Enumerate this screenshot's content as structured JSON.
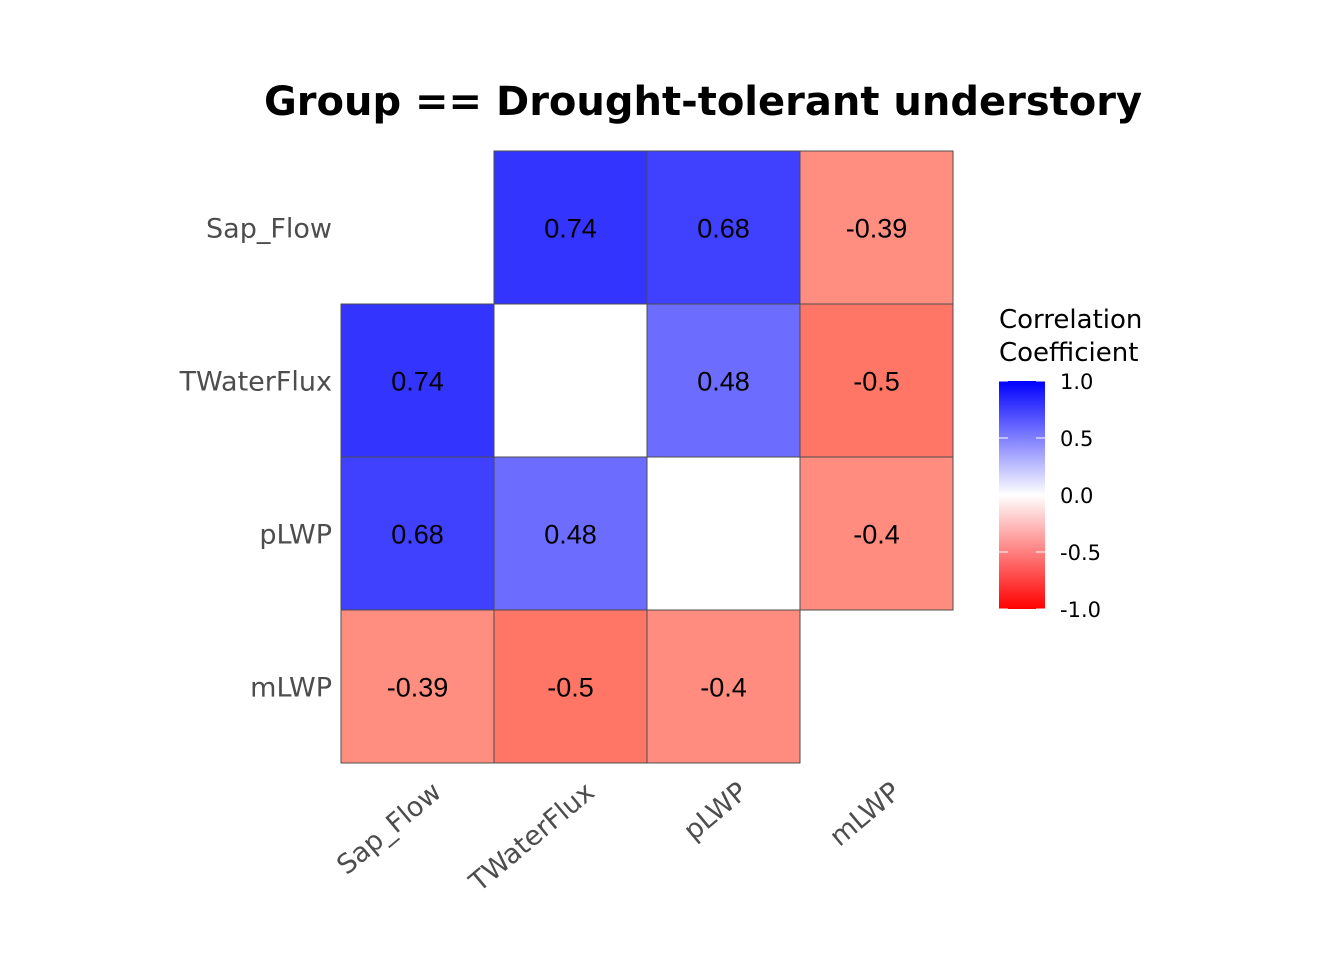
{
  "chart_data": {
    "type": "heatmap",
    "title": "Group == Drought-tolerant understory",
    "rows": [
      "Sap_Flow",
      "TWaterFlux",
      "pLWP",
      "mLWP"
    ],
    "columns": [
      "Sap_Flow",
      "TWaterFlux",
      "pLWP",
      "mLWP"
    ],
    "values": [
      [
        null,
        0.74,
        0.68,
        -0.39
      ],
      [
        0.74,
        null,
        0.48,
        -0.5
      ],
      [
        0.68,
        0.48,
        null,
        -0.4
      ],
      [
        -0.39,
        -0.5,
        -0.4,
        null
      ]
    ],
    "cell_labels": [
      [
        null,
        "0.74",
        "0.68",
        "-0.39"
      ],
      [
        "0.74",
        null,
        "0.48",
        "-0.5"
      ],
      [
        "0.68",
        "0.48",
        null,
        "-0.4"
      ],
      [
        "-0.39",
        "-0.5",
        "-0.4",
        null
      ]
    ],
    "diagonal": "blank",
    "legend": {
      "title_lines": [
        "Correlation",
        "Coefficient"
      ],
      "ticks": [
        1.0,
        0.5,
        0.0,
        -0.5,
        -1.0
      ],
      "tick_labels": [
        "1.0",
        "0.5",
        "0.0",
        "-0.5",
        "-1.0"
      ],
      "range": [
        -1,
        1
      ],
      "position": "right"
    },
    "color_scale": {
      "low": "#ff0000",
      "mid": "#ffffff",
      "high": "#0000ff"
    },
    "cell_border_color": "#4d4d4d",
    "grid": false
  }
}
